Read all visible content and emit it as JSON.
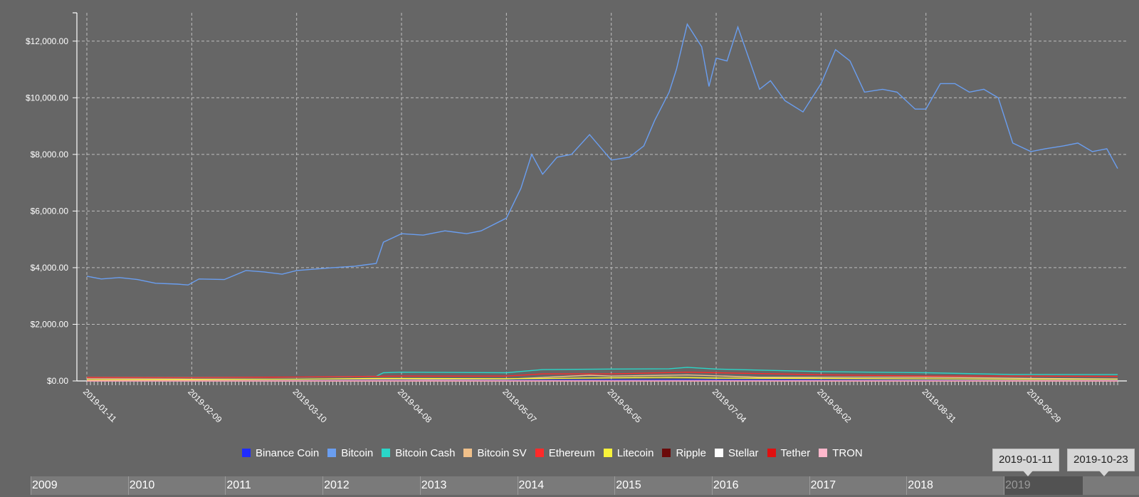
{
  "chart_data": {
    "type": "line",
    "y_axis": {
      "ylim": [
        0,
        13000
      ],
      "ticks": [
        0,
        2000,
        4000,
        6000,
        8000,
        10000,
        12000
      ],
      "tick_labels": [
        "$0.00",
        "$2,000.00",
        "$4,000.00",
        "$6,000.00",
        "$8,000.00",
        "$10,000.00",
        "$12,000.00"
      ]
    },
    "x_axis": {
      "start": "2019-01-11",
      "end": "2019-10-23",
      "tick_labels": [
        "2019-01-11",
        "2019-02-09",
        "2019-03-10",
        "2019-04-08",
        "2019-05-07",
        "2019-06-05",
        "2019-07-04",
        "2019-08-02",
        "2019-08-31",
        "2019-09-29"
      ]
    },
    "grid": true,
    "legend_position": "bottom",
    "series": [
      {
        "name": "Binance Coin",
        "color": "#1f2cff",
        "points": [
          [
            "2019-01-11",
            6
          ],
          [
            "2019-03-10",
            14
          ],
          [
            "2019-04-08",
            18
          ],
          [
            "2019-05-07",
            22
          ],
          [
            "2019-06-05",
            33
          ],
          [
            "2019-06-26",
            36
          ],
          [
            "2019-07-04",
            32
          ],
          [
            "2019-08-02",
            27
          ],
          [
            "2019-08-31",
            22
          ],
          [
            "2019-09-29",
            16
          ],
          [
            "2019-10-23",
            19
          ]
        ]
      },
      {
        "name": "Bitcoin",
        "color": "#6a9ef0",
        "points": [
          [
            "2019-01-11",
            3700
          ],
          [
            "2019-01-15",
            3600
          ],
          [
            "2019-01-20",
            3650
          ],
          [
            "2019-01-25",
            3580
          ],
          [
            "2019-01-30",
            3450
          ],
          [
            "2019-02-05",
            3420
          ],
          [
            "2019-02-08",
            3390
          ],
          [
            "2019-02-11",
            3600
          ],
          [
            "2019-02-18",
            3580
          ],
          [
            "2019-02-24",
            3900
          ],
          [
            "2019-03-01",
            3850
          ],
          [
            "2019-03-06",
            3770
          ],
          [
            "2019-03-10",
            3900
          ],
          [
            "2019-03-15",
            3950
          ],
          [
            "2019-03-20",
            4000
          ],
          [
            "2019-03-26",
            4050
          ],
          [
            "2019-04-01",
            4150
          ],
          [
            "2019-04-03",
            4900
          ],
          [
            "2019-04-08",
            5200
          ],
          [
            "2019-04-14",
            5150
          ],
          [
            "2019-04-20",
            5300
          ],
          [
            "2019-04-26",
            5200
          ],
          [
            "2019-04-30",
            5300
          ],
          [
            "2019-05-07",
            5750
          ],
          [
            "2019-05-11",
            6800
          ],
          [
            "2019-05-14",
            8000
          ],
          [
            "2019-05-17",
            7300
          ],
          [
            "2019-05-21",
            7900
          ],
          [
            "2019-05-25",
            8000
          ],
          [
            "2019-05-30",
            8700
          ],
          [
            "2019-06-05",
            7800
          ],
          [
            "2019-06-10",
            7900
          ],
          [
            "2019-06-14",
            8300
          ],
          [
            "2019-06-17",
            9200
          ],
          [
            "2019-06-21",
            10200
          ],
          [
            "2019-06-23",
            11000
          ],
          [
            "2019-06-26",
            12600
          ],
          [
            "2019-06-30",
            11800
          ],
          [
            "2019-07-02",
            10400
          ],
          [
            "2019-07-04",
            11400
          ],
          [
            "2019-07-07",
            11300
          ],
          [
            "2019-07-10",
            12500
          ],
          [
            "2019-07-13",
            11400
          ],
          [
            "2019-07-16",
            10300
          ],
          [
            "2019-07-19",
            10600
          ],
          [
            "2019-07-23",
            9900
          ],
          [
            "2019-07-28",
            9500
          ],
          [
            "2019-08-02",
            10500
          ],
          [
            "2019-08-06",
            11700
          ],
          [
            "2019-08-10",
            11300
          ],
          [
            "2019-08-14",
            10200
          ],
          [
            "2019-08-19",
            10300
          ],
          [
            "2019-08-23",
            10200
          ],
          [
            "2019-08-28",
            9600
          ],
          [
            "2019-08-31",
            9600
          ],
          [
            "2019-09-04",
            10500
          ],
          [
            "2019-09-08",
            10500
          ],
          [
            "2019-09-12",
            10200
          ],
          [
            "2019-09-16",
            10300
          ],
          [
            "2019-09-20",
            10000
          ],
          [
            "2019-09-24",
            8400
          ],
          [
            "2019-09-29",
            8100
          ],
          [
            "2019-10-03",
            8200
          ],
          [
            "2019-10-08",
            8300
          ],
          [
            "2019-10-12",
            8400
          ],
          [
            "2019-10-16",
            8100
          ],
          [
            "2019-10-20",
            8200
          ],
          [
            "2019-10-23",
            7500
          ]
        ]
      },
      {
        "name": "Bitcoin Cash",
        "color": "#2ad6c8",
        "points": [
          [
            "2019-01-11",
            130
          ],
          [
            "2019-02-09",
            125
          ],
          [
            "2019-03-10",
            130
          ],
          [
            "2019-04-01",
            165
          ],
          [
            "2019-04-03",
            290
          ],
          [
            "2019-04-08",
            310
          ],
          [
            "2019-05-07",
            290
          ],
          [
            "2019-05-17",
            400
          ],
          [
            "2019-06-05",
            420
          ],
          [
            "2019-06-21",
            430
          ],
          [
            "2019-06-26",
            480
          ],
          [
            "2019-07-04",
            420
          ],
          [
            "2019-08-02",
            330
          ],
          [
            "2019-08-31",
            290
          ],
          [
            "2019-09-24",
            230
          ],
          [
            "2019-10-23",
            225
          ]
        ]
      },
      {
        "name": "Bitcoin SV",
        "color": "#f0c08a",
        "points": [
          [
            "2019-01-11",
            80
          ],
          [
            "2019-02-09",
            65
          ],
          [
            "2019-03-10",
            60
          ],
          [
            "2019-04-08",
            65
          ],
          [
            "2019-04-15",
            55
          ],
          [
            "2019-05-07",
            65
          ],
          [
            "2019-05-30",
            200
          ],
          [
            "2019-06-05",
            170
          ],
          [
            "2019-06-26",
            210
          ],
          [
            "2019-07-04",
            180
          ],
          [
            "2019-07-16",
            130
          ],
          [
            "2019-08-02",
            130
          ],
          [
            "2019-08-31",
            130
          ],
          [
            "2019-09-29",
            90
          ],
          [
            "2019-10-23",
            70
          ]
        ]
      },
      {
        "name": "Ethereum",
        "color": "#ff2a2a",
        "points": [
          [
            "2019-01-11",
            125
          ],
          [
            "2019-02-09",
            120
          ],
          [
            "2019-03-10",
            135
          ],
          [
            "2019-04-08",
            170
          ],
          [
            "2019-05-07",
            170
          ],
          [
            "2019-05-17",
            250
          ],
          [
            "2019-06-05",
            250
          ],
          [
            "2019-06-26",
            310
          ],
          [
            "2019-07-04",
            290
          ],
          [
            "2019-08-02",
            220
          ],
          [
            "2019-08-31",
            170
          ],
          [
            "2019-09-29",
            170
          ],
          [
            "2019-10-23",
            160
          ]
        ]
      },
      {
        "name": "Litecoin",
        "color": "#f7f23a",
        "points": [
          [
            "2019-01-11",
            32
          ],
          [
            "2019-02-09",
            42
          ],
          [
            "2019-03-10",
            58
          ],
          [
            "2019-04-03",
            90
          ],
          [
            "2019-05-07",
            75
          ],
          [
            "2019-06-05",
            110
          ],
          [
            "2019-06-21",
            130
          ],
          [
            "2019-07-04",
            100
          ],
          [
            "2019-08-02",
            90
          ],
          [
            "2019-08-31",
            70
          ],
          [
            "2019-09-29",
            55
          ],
          [
            "2019-10-23",
            55
          ]
        ]
      },
      {
        "name": "Ripple",
        "color": "#6b0a0a",
        "points": [
          [
            "2019-01-11",
            0.35
          ],
          [
            "2019-04-08",
            0.35
          ],
          [
            "2019-07-04",
            0.35
          ],
          [
            "2019-10-23",
            0.29
          ]
        ]
      },
      {
        "name": "Stellar",
        "color": "#ffffff",
        "points": [
          [
            "2019-01-11",
            0.11
          ],
          [
            "2019-04-08",
            0.12
          ],
          [
            "2019-07-04",
            0.1
          ],
          [
            "2019-10-23",
            0.07
          ]
        ]
      },
      {
        "name": "Tether",
        "color": "#e01010",
        "points": [
          [
            "2019-01-11",
            1
          ],
          [
            "2019-10-23",
            1
          ]
        ]
      },
      {
        "name": "TRON",
        "color": "#ffb8cc",
        "points": [
          [
            "2019-01-11",
            0.025
          ],
          [
            "2019-07-04",
            0.03
          ],
          [
            "2019-10-23",
            0.02
          ]
        ]
      }
    ]
  },
  "timeline": {
    "years": [
      "2009",
      "2010",
      "2011",
      "2012",
      "2013",
      "2014",
      "2015",
      "2016",
      "2017",
      "2018",
      "2019"
    ],
    "selected_year": "2019",
    "range_start": "2019-01-11",
    "range_end": "2019-10-23"
  }
}
